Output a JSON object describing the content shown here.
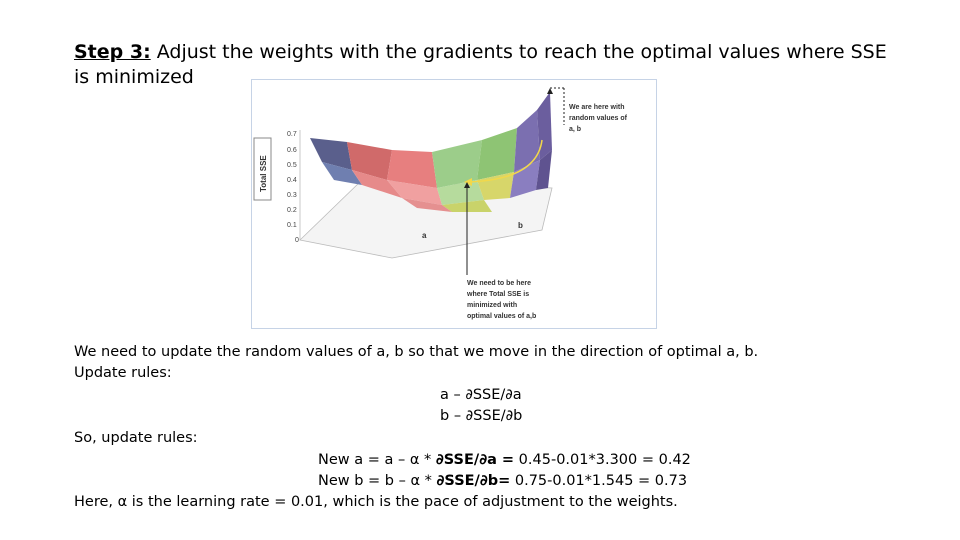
{
  "slide": {
    "title_step": "Step 3:",
    "title_rest": " Adjust the weights with the gradients to reach the optimal values where SSE is minimized"
  },
  "figure": {
    "y_axis_label": "Total SSE",
    "y_ticks": [
      "0.7",
      "0.6",
      "0.5",
      "0.4",
      "0.3",
      "0.2",
      "0.1",
      "0"
    ],
    "axis_a_label": "a",
    "axis_b_label": "b",
    "callout_top": [
      "We are here with",
      "random values of",
      "a, b"
    ],
    "callout_bottom": [
      "We need to be here",
      "where Total SSE is",
      "minimized with",
      "optimal values of a,b"
    ]
  },
  "text": {
    "line1": "We need to update the random values of a, b so that we move in the direction of optimal a, b.",
    "line2": "Update rules:",
    "rule_a": "a – ∂SSE/∂a",
    "rule_b": "b – ∂SSE/∂b",
    "line3": "So, update rules:",
    "new_a_prefix": "New a = a – α * ",
    "new_a_bold": "∂SSE/∂a =",
    "new_a_suffix": " 0.45-0.01*3.300 = 0.42",
    "new_b_prefix": "New b = b – α * ",
    "new_b_bold": "∂SSE/∂b=",
    "new_b_suffix": " 0.75-0.01*1.545 = 0.73",
    "line4": "Here, α is the learning rate = 0.01, which is the pace of adjustment to the weights."
  }
}
